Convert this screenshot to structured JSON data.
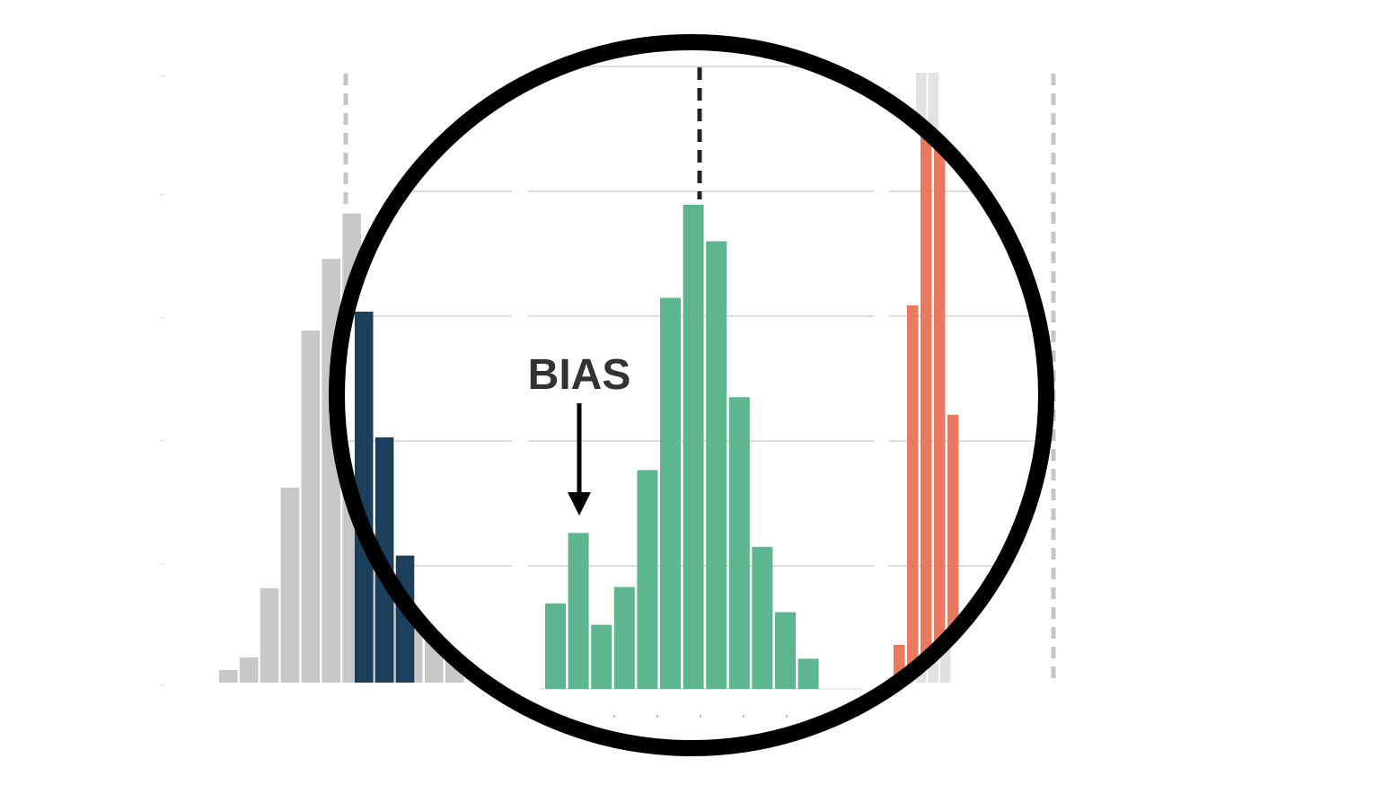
{
  "annotation": {
    "label": "BIAS"
  },
  "colors": {
    "background": "#ffffff",
    "ghost_bars": "#c8c8c8",
    "ghost_bars_light": "#e2e2e2",
    "left_highlight_bars": "#1c3f5c",
    "center_bars": "#5db68e",
    "right_bars": "#e9795f",
    "grid": "#d2d2d2",
    "ghost_dash": "#c4c4c4",
    "center_dash": "#222222",
    "lens_ring": "#000000",
    "annotation_text": "#333333",
    "arrow": "#000000"
  },
  "chart_data": [
    {
      "type": "bar",
      "role": "left-background-histogram",
      "values": [
        1,
        2,
        7.5,
        15.5,
        28,
        33.7,
        37.3,
        29,
        20,
        10,
        5,
        2
      ]
    },
    {
      "type": "bar",
      "role": "left-highlight-histogram",
      "values": [
        29.5,
        19.5,
        10.1
      ]
    },
    {
      "type": "bar",
      "role": "center-histogram",
      "values": [
        6.8,
        12.4,
        5.1,
        8.1,
        17.4,
        31.1,
        38.5,
        35.6,
        23.2,
        11.3,
        6.1,
        2.4
      ],
      "annotation": {
        "label": "BIAS",
        "bar_index": 1
      },
      "reference_line_bar_index": 6
    },
    {
      "type": "bar",
      "role": "right-histogram",
      "values": [
        3.5,
        30.5,
        44,
        43,
        21.8
      ]
    },
    {
      "type": "bar",
      "role": "right-background-histogram",
      "values": [
        48.5,
        48.5,
        3.5
      ]
    }
  ]
}
